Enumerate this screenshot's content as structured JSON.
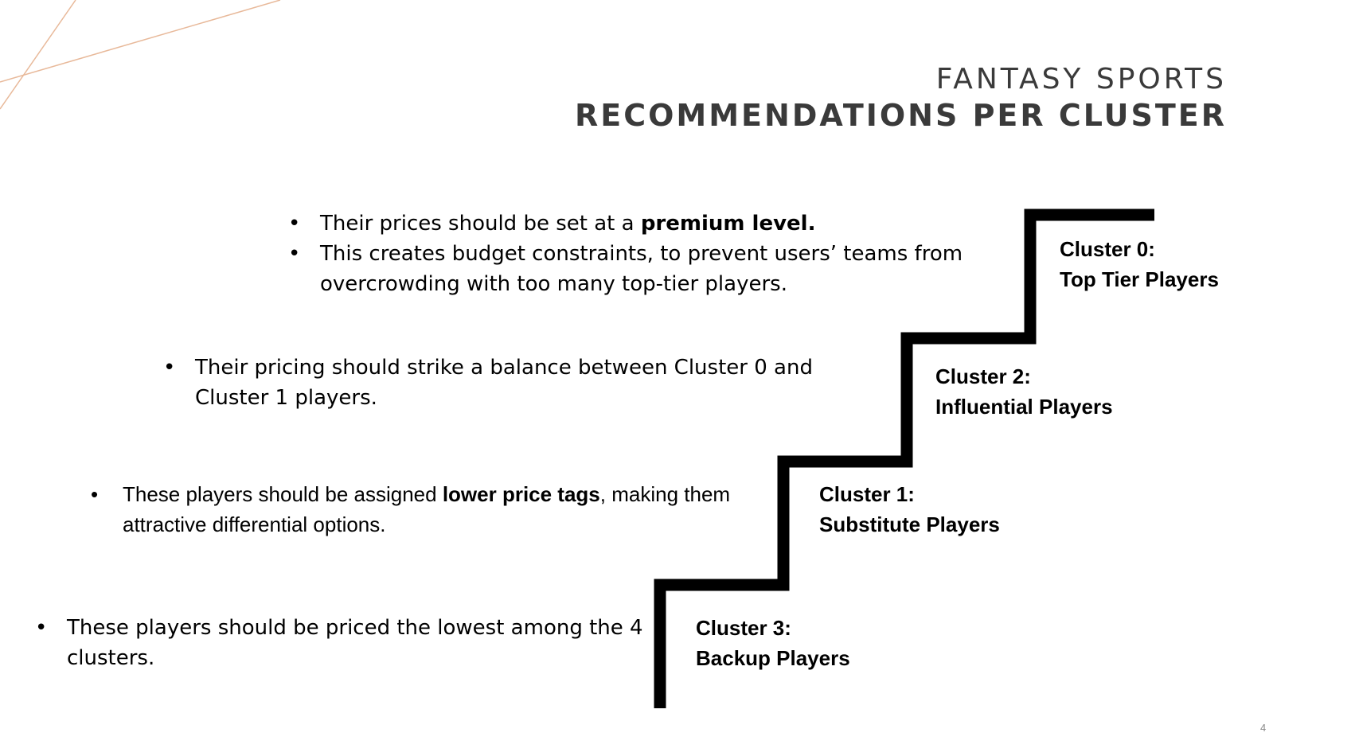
{
  "title": {
    "line1": "FANTASY SPORTS",
    "line2": "RECOMMENDATIONS PER CLUSTER"
  },
  "clusters": [
    {
      "label": "Cluster 0:",
      "sublabel": "Top Tier Players",
      "bullets": [
        {
          "pre": "Their prices should be set at a ",
          "bold": "premium level.",
          "post": ""
        },
        {
          "pre": "This creates budget constraints, to prevent users’ teams from overcrowding with too many top-tier players.",
          "bold": "",
          "post": ""
        }
      ]
    },
    {
      "label": "Cluster 2:",
      "sublabel": "Influential Players",
      "bullets": [
        {
          "pre": "Their pricing should strike a balance between Cluster 0 and Cluster 1 players.",
          "bold": "",
          "post": ""
        }
      ]
    },
    {
      "label": "Cluster 1:",
      "sublabel": "Substitute Players",
      "bullets": [
        {
          "pre": "These players should be assigned ",
          "bold": "lower price tags",
          "post": ", making them attractive differential options."
        }
      ]
    },
    {
      "label": "Cluster 3:",
      "sublabel": "Backup Players",
      "bullets": [
        {
          "pre": "These players should be priced the lowest among the 4 clusters.",
          "bold": "",
          "post": ""
        }
      ]
    }
  ],
  "page_number": "4",
  "colors": {
    "title": "#3a3a3a",
    "stairs": "#000000",
    "deco_line": "#e8b99a"
  }
}
